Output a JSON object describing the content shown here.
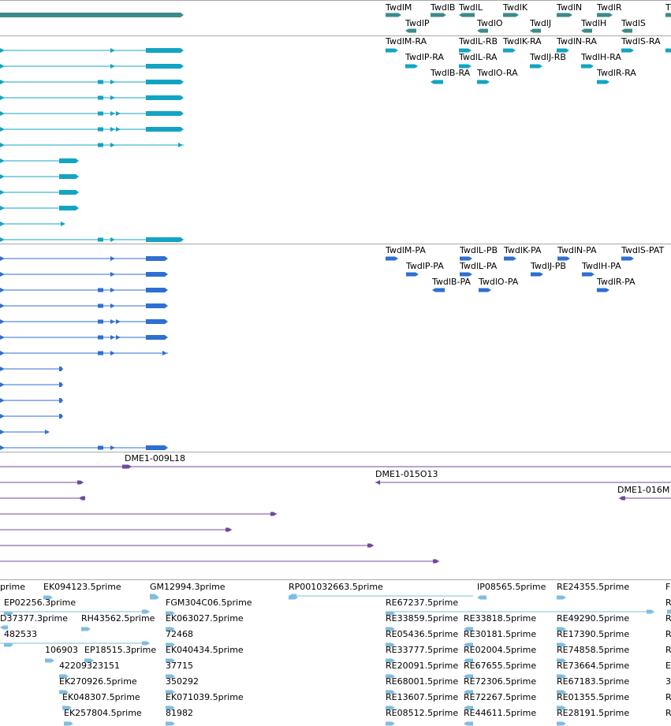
{
  "colors": {
    "gene_track": "#3d8a8a",
    "transcript_cyan": "#13a4c3",
    "transcript_blue": "#2e6fd1",
    "clone_purple": "#6d4a9e",
    "est_lightblue": "#7fbde0",
    "separator": "#a8a8a8",
    "background": "#ffffff"
  },
  "gene_labels": [
    "TwdlM",
    "TwdlB",
    "TwdlL",
    "TwdlK",
    "TwdlN",
    "TwdlR",
    "T",
    "TwdlP",
    "TwdlO",
    "TwdlJ",
    "TwdlH",
    "TwdlS"
  ],
  "transcript_ra_labels": [
    "TwdlM-RA",
    "TwdlL-RB",
    "TwdlK-RA",
    "TwdlN-RA",
    "TwdlS-RA",
    "TwdlP-RA",
    "TwdlL-RA",
    "TwdlJ-RB",
    "TwdlH-RA",
    "TwdlB-RA",
    "TwdlO-RA",
    "TwdlR-RA"
  ],
  "protein_pa_labels": [
    "TwdlM-PA",
    "TwdlL-PB",
    "TwdlK-PA",
    "TwdlN-PA",
    "TwdlS-PAT",
    "TwdlP-PA",
    "TwdlL-PA",
    "TwdlJ-PB",
    "TwdlH-PA",
    "TwdlB-PA",
    "TwdlO-PA",
    "TwdlR-PA"
  ],
  "clone_labels": [
    "DME1-009L18",
    "DME1-015O13",
    "DME1-016M"
  ],
  "est_labels": [
    "prime",
    "EK094123.5prime",
    "GM12994.3prime",
    "RP001032663.5prime",
    "IP08565.5prime",
    "RE24355.5prime",
    "F",
    "EP02256.3prime",
    "FGM304C06.5prime",
    "RE67237.5prime",
    "R",
    "D37377.3prime",
    "RH43562.5prime",
    "EK063027.5prime",
    "RE33859.5prime",
    "RE33818.5prime",
    "RE49290.5prime",
    "R",
    "482533",
    "72468",
    "RE05436.5prime",
    "RE30181.5prime",
    "RE17390.5prime",
    "R",
    "106903",
    "EP18515.3prime",
    "EK040434.5prime",
    "RE33777.5prime",
    "RE02004.5prime",
    "RE74858.5prime",
    "R",
    "42209323151",
    "37715",
    "RE20091.5prime",
    "RE67655.5prime",
    "RE73664.5prime",
    "E",
    "EK270926.5prime",
    "350292",
    "RE68001.5prime",
    "RE72306.5prime",
    "RE67183.5prime",
    "3",
    "EK048307.5prime",
    "EK071039.5prime",
    "RE13607.5prime",
    "RE72267.5prime",
    "RE01355.5prime",
    "R",
    "EK257804.5prime",
    "81982",
    "RE08512.5prime",
    "RE44611.5prime",
    "RE28191.5prime",
    "R"
  ]
}
